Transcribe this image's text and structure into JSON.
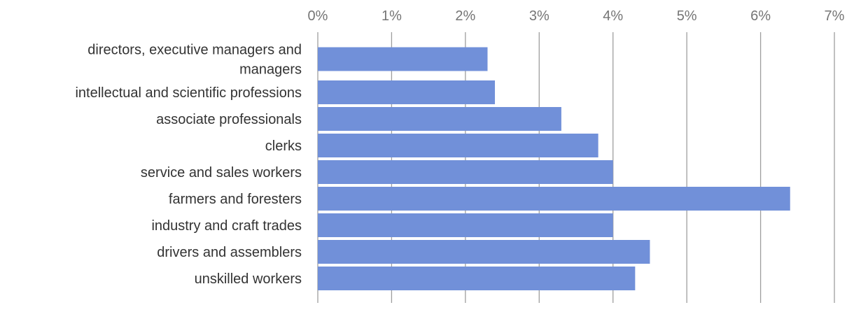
{
  "chart_data": {
    "type": "bar",
    "orientation": "horizontal",
    "categories": [
      [
        "directors, executive managers and",
        "managers"
      ],
      [
        "intellectual and scientific professions"
      ],
      [
        "associate professionals"
      ],
      [
        "clerks"
      ],
      [
        "service and sales workers"
      ],
      [
        "farmers and foresters"
      ],
      [
        "industry and craft trades"
      ],
      [
        "drivers and assemblers"
      ],
      [
        "unskilled workers"
      ]
    ],
    "values": [
      2.3,
      2.4,
      3.3,
      3.8,
      4.0,
      6.4,
      4.0,
      4.5,
      4.3
    ],
    "xlim": [
      0,
      7
    ],
    "x_ticks": [
      "0%",
      "1%",
      "2%",
      "3%",
      "4%",
      "5%",
      "6%",
      "7%"
    ],
    "x_axis_position": "top",
    "grid": true,
    "legend": "none",
    "colors": {
      "bar": "#7190d9",
      "grid": "#9e9e9e",
      "tick_text": "#757575",
      "label_text": "#333333"
    }
  }
}
